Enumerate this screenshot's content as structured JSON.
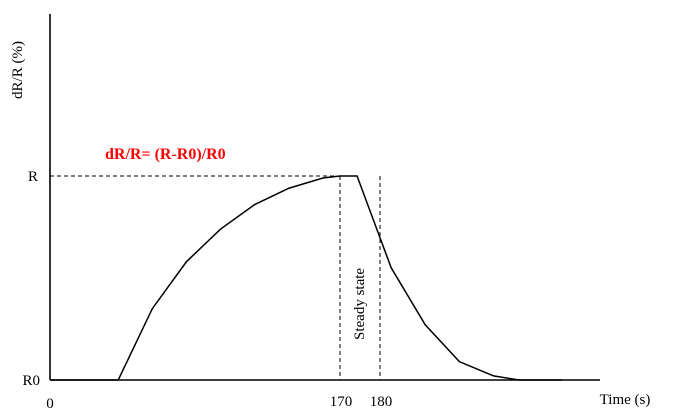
{
  "chart_data": {
    "type": "line",
    "title": "",
    "xlabel": "Time (s)",
    "ylabel": "dR/R (%)",
    "x_ticks": [
      {
        "value": 0,
        "label": "0"
      },
      {
        "value": 170,
        "label": "170"
      },
      {
        "value": 180,
        "label": "180"
      }
    ],
    "y_ticks": [
      {
        "level": "R0",
        "label": "R0"
      },
      {
        "level": "R",
        "label": "R"
      }
    ],
    "annotations": {
      "formula": "dR/R= (R-R0)/R0",
      "steady_state": "Steady state"
    },
    "series": [
      {
        "x": [
          0,
          40,
          60,
          80,
          100,
          120,
          140,
          160,
          170,
          180,
          200,
          220,
          240,
          260,
          275,
          300
        ],
        "y": [
          "R0",
          "R0",
          0.35,
          0.58,
          0.74,
          0.86,
          0.94,
          0.99,
          1.0,
          1.0,
          0.55,
          0.27,
          0.09,
          0.02,
          0.0,
          0.0
        ]
      }
    ],
    "grid": false,
    "legend": "none",
    "colors": {
      "curve": "#000000",
      "formula": "#ff0000",
      "axes": "#000000"
    }
  }
}
